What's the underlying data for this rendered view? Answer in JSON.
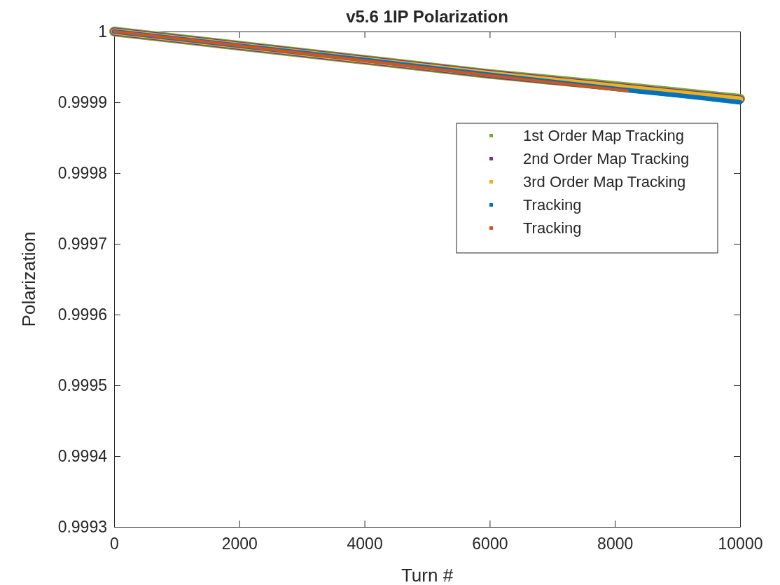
{
  "chart_data": {
    "type": "line",
    "title": "v5.6 1IP Polarization",
    "xlabel": "Turn #",
    "ylabel": "Polarization",
    "xlim": [
      0,
      10000
    ],
    "xticks": [
      0,
      2000,
      4000,
      6000,
      8000,
      10000
    ],
    "ylim": [
      0.9993,
      1
    ],
    "yticks": [
      0.9993,
      0.9994,
      0.9995,
      0.9996,
      0.9997,
      0.9998,
      0.9999,
      1
    ],
    "legend": "top right",
    "grid": false,
    "series": [
      {
        "name": "1st Order Map Tracking",
        "color": "#77ac30",
        "x": [
          0,
          2000,
          4000,
          6000,
          8000,
          10000
        ],
        "values": [
          1,
          0.99998,
          0.99996,
          0.99994,
          0.999923,
          0.999905
        ]
      },
      {
        "name": "2nd Order Map Tracking",
        "color": "#7e2f8e",
        "x": [
          0,
          2000,
          4000,
          6000,
          8000,
          10000
        ],
        "values": [
          1,
          0.99998,
          0.99996,
          0.99994,
          0.999922,
          0.999904
        ]
      },
      {
        "name": "3rd Order Map Tracking",
        "color": "#edb120",
        "x": [
          0,
          2000,
          4000,
          6000,
          8000,
          10000
        ],
        "values": [
          1,
          0.99998,
          0.99996,
          0.99994,
          0.999922,
          0.999904
        ]
      },
      {
        "name": "Tracking",
        "color": "#0072bd",
        "x": [
          0,
          2000,
          4000,
          6000,
          8200,
          9000,
          10000
        ],
        "values": [
          1,
          0.99998,
          0.99996,
          0.999939,
          0.999917,
          0.99991,
          0.9999
        ]
      },
      {
        "name": "Tracking",
        "color": "#d95319",
        "x": [
          0,
          2000,
          4000,
          6000,
          8000,
          8200
        ],
        "values": [
          1,
          0.99998,
          0.999959,
          0.999938,
          0.999918,
          0.999916
        ]
      }
    ]
  }
}
